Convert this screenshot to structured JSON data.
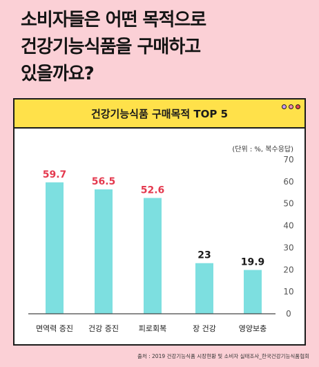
{
  "headline": {
    "line1": "소비자들은 어떤 목적으로",
    "line2": "건강기능식품을 구매하고",
    "line3": "있을까요?"
  },
  "card": {
    "title": "건강기능식품 구매목적 TOP 5",
    "unit_note": "(단위 : %, 복수응답)",
    "dot_colors": [
      "#c79cf2",
      "#f08ab2",
      "#e8464f"
    ]
  },
  "source": "출처 : 2019 건강기능식품 시장현황 및 소비자 실태조사_한국건강기능식품협회",
  "chart_data": {
    "type": "bar",
    "categories": [
      "면역력 증진",
      "건강 증진",
      "피로회복",
      "장 건강",
      "영양보충"
    ],
    "values": [
      59.7,
      56.5,
      52.6,
      23,
      19.9
    ],
    "value_labels": [
      "59.7",
      "56.5",
      "52.6",
      "23",
      "19.9"
    ],
    "value_label_colors": [
      "#e43a4f",
      "#e43a4f",
      "#e43a4f",
      "#1a1a1a",
      "#1a1a1a"
    ],
    "bar_color": "#7ddfe0",
    "ylim": [
      0,
      70
    ],
    "yticks": [
      0,
      10,
      20,
      30,
      40,
      50,
      60,
      70
    ],
    "y_axis_side": "right",
    "grid": false,
    "title": "건강기능식품 구매목적 TOP 5"
  }
}
